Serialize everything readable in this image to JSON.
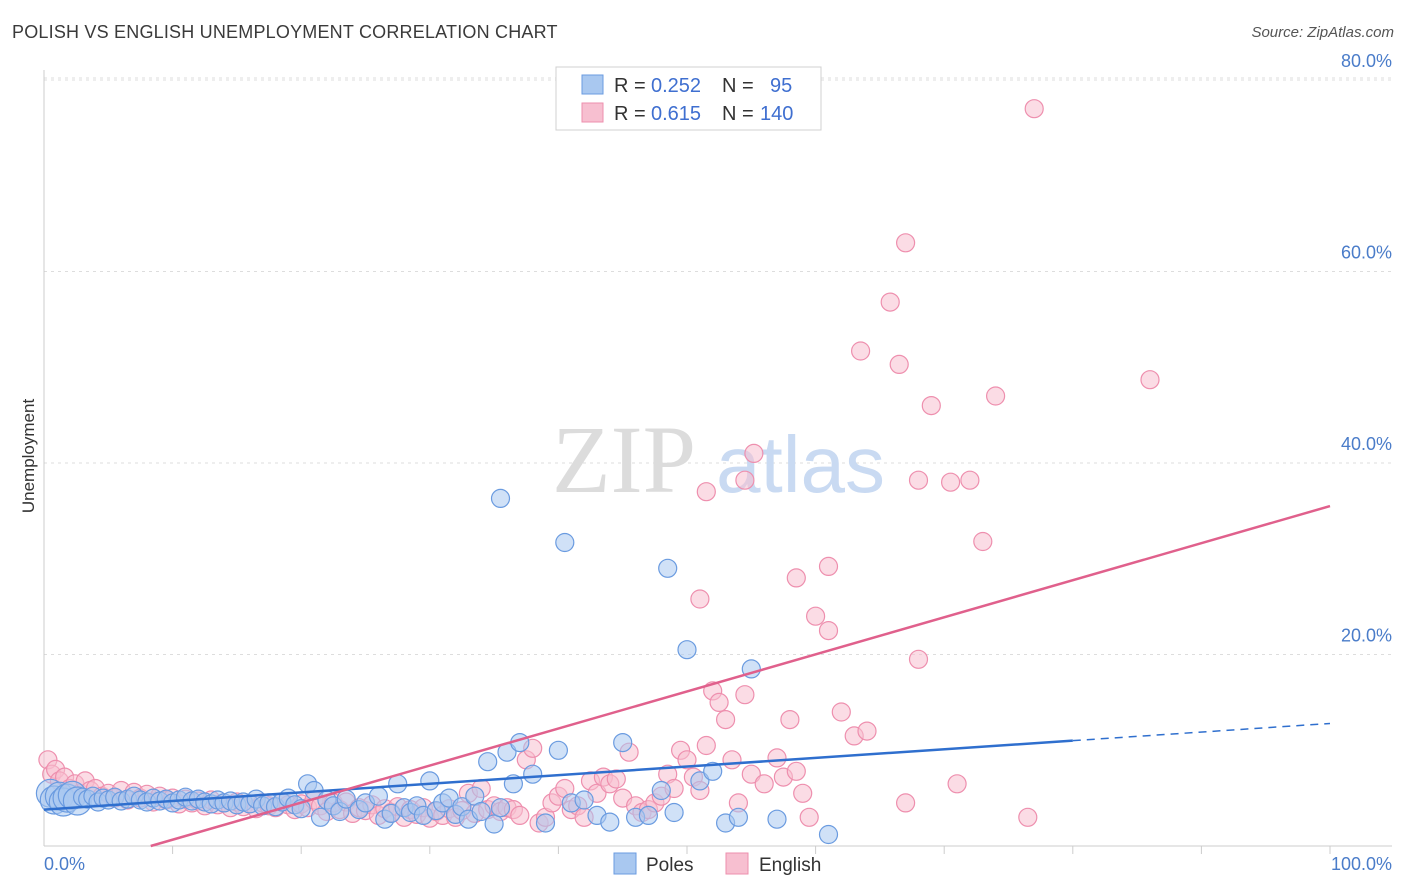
{
  "title": "POLISH VS ENGLISH UNEMPLOYMENT CORRELATION CHART",
  "source": "Source: ZipAtlas.com",
  "watermark": {
    "zip": "ZIP",
    "atlas": "atlas"
  },
  "legend": {
    "rows": [
      {
        "r_label": "R =",
        "r_value": "0.252",
        "n_label": "N =",
        "n_value": "95"
      },
      {
        "r_label": "R =",
        "r_value": "0.615",
        "n_label": "N =",
        "n_value": "140"
      }
    ]
  },
  "colors": {
    "poles_fill": "#a9c8f0",
    "poles_stroke": "#6a9be0",
    "poles_line": "#2f6fce",
    "english_fill": "#f7bfd0",
    "english_stroke": "#ee8fae",
    "english_line": "#e0608c",
    "grid": "#dddddd",
    "tick_label": "#4a7cc9"
  },
  "chart_data": {
    "type": "scatter",
    "xlabel": "",
    "ylabel": "Unemployment",
    "xlim": [
      0,
      100
    ],
    "ylim": [
      0,
      80
    ],
    "x_tick_labels": [
      "0.0%",
      "100.0%"
    ],
    "y_ticks": [
      20,
      40,
      60,
      80
    ],
    "y_tick_labels": [
      "20.0%",
      "40.0%",
      "60.0%",
      "80.0%"
    ],
    "grid": true,
    "legend_position": "bottom-center",
    "series": [
      {
        "name": "Poles",
        "trend": {
          "x": [
            0,
            80
          ],
          "y": [
            3.8,
            11.0
          ],
          "dashed_to": [
            100,
            12.8
          ]
        },
        "points": [
          [
            0.5,
            5.5
          ],
          [
            0.8,
            4.8
          ],
          [
            1.2,
            5.2
          ],
          [
            1.5,
            4.6
          ],
          [
            1.8,
            5.0
          ],
          [
            2.2,
            5.3
          ],
          [
            2.6,
            4.7
          ],
          [
            3.0,
            5.1
          ],
          [
            3.4,
            4.9
          ],
          [
            3.8,
            5.2
          ],
          [
            4.2,
            4.6
          ],
          [
            4.6,
            5.0
          ],
          [
            5.0,
            4.8
          ],
          [
            5.5,
            5.1
          ],
          [
            6.0,
            4.7
          ],
          [
            6.5,
            4.9
          ],
          [
            7.0,
            5.2
          ],
          [
            7.5,
            4.8
          ],
          [
            8.0,
            4.6
          ],
          [
            8.5,
            5.0
          ],
          [
            9.0,
            4.7
          ],
          [
            9.5,
            4.9
          ],
          [
            10.0,
            4.5
          ],
          [
            10.5,
            4.8
          ],
          [
            11.0,
            5.1
          ],
          [
            11.5,
            4.7
          ],
          [
            12.0,
            4.9
          ],
          [
            12.5,
            4.6
          ],
          [
            13.0,
            4.4
          ],
          [
            13.5,
            4.8
          ],
          [
            14.0,
            4.5
          ],
          [
            14.5,
            4.7
          ],
          [
            15.0,
            4.3
          ],
          [
            15.5,
            4.6
          ],
          [
            16.0,
            4.4
          ],
          [
            16.5,
            4.9
          ],
          [
            17.0,
            4.2
          ],
          [
            17.5,
            4.5
          ],
          [
            18.0,
            4.1
          ],
          [
            18.5,
            4.6
          ],
          [
            19.0,
            5.0
          ],
          [
            19.5,
            4.3
          ],
          [
            20.0,
            3.9
          ],
          [
            20.5,
            6.5
          ],
          [
            21.0,
            5.8
          ],
          [
            21.5,
            3.0
          ],
          [
            22.0,
            4.8
          ],
          [
            22.5,
            4.2
          ],
          [
            23.0,
            3.6
          ],
          [
            23.5,
            4.9
          ],
          [
            24.5,
            3.8
          ],
          [
            25.0,
            4.5
          ],
          [
            26.0,
            5.2
          ],
          [
            26.5,
            2.8
          ],
          [
            27.0,
            3.4
          ],
          [
            27.5,
            6.5
          ],
          [
            28.0,
            4.0
          ],
          [
            28.5,
            3.5
          ],
          [
            29.0,
            4.2
          ],
          [
            29.5,
            3.2
          ],
          [
            30.0,
            6.8
          ],
          [
            30.5,
            3.7
          ],
          [
            31.0,
            4.5
          ],
          [
            31.5,
            5.0
          ],
          [
            32.0,
            3.3
          ],
          [
            32.5,
            4.1
          ],
          [
            33.0,
            2.8
          ],
          [
            33.5,
            5.2
          ],
          [
            34.0,
            3.6
          ],
          [
            34.5,
            8.8
          ],
          [
            35.0,
            2.3
          ],
          [
            35.5,
            4.0
          ],
          [
            36.0,
            9.8
          ],
          [
            36.5,
            6.5
          ],
          [
            37.0,
            10.8
          ],
          [
            38.0,
            7.5
          ],
          [
            39.0,
            2.4
          ],
          [
            40.0,
            10.0
          ],
          [
            41.0,
            4.5
          ],
          [
            42.0,
            4.8
          ],
          [
            43.0,
            3.2
          ],
          [
            44.0,
            2.5
          ],
          [
            45.0,
            10.8
          ],
          [
            46.0,
            3.0
          ],
          [
            47.0,
            3.2
          ],
          [
            48.0,
            5.8
          ],
          [
            49.0,
            3.5
          ],
          [
            50.0,
            20.5
          ],
          [
            51.0,
            6.8
          ],
          [
            52.0,
            7.8
          ],
          [
            53.0,
            2.4
          ],
          [
            54.0,
            3.0
          ],
          [
            55.0,
            18.5
          ],
          [
            57.0,
            2.8
          ],
          [
            61.0,
            1.2
          ],
          [
            35.5,
            36.3
          ],
          [
            40.5,
            31.7
          ],
          [
            48.5,
            29.0
          ]
        ]
      },
      {
        "name": "English",
        "trend": {
          "x": [
            8.3,
            100
          ],
          "y": [
            0,
            35.5
          ]
        },
        "points": [
          [
            0.3,
            9.0
          ],
          [
            0.6,
            7.5
          ],
          [
            0.9,
            8.0
          ],
          [
            1.2,
            6.8
          ],
          [
            1.6,
            7.2
          ],
          [
            2.0,
            6.0
          ],
          [
            2.4,
            6.5
          ],
          [
            2.8,
            5.5
          ],
          [
            3.2,
            6.8
          ],
          [
            3.6,
            5.8
          ],
          [
            4.0,
            6.0
          ],
          [
            4.5,
            5.2
          ],
          [
            5.0,
            5.5
          ],
          [
            5.5,
            5.0
          ],
          [
            6.0,
            5.8
          ],
          [
            6.5,
            4.8
          ],
          [
            7.0,
            5.6
          ],
          [
            7.5,
            5.0
          ],
          [
            8.0,
            5.4
          ],
          [
            8.5,
            4.6
          ],
          [
            9.0,
            5.2
          ],
          [
            9.5,
            4.8
          ],
          [
            10.0,
            5.0
          ],
          [
            10.5,
            4.4
          ],
          [
            11.0,
            4.9
          ],
          [
            11.5,
            4.5
          ],
          [
            12.0,
            4.7
          ],
          [
            12.5,
            4.2
          ],
          [
            13.0,
            4.8
          ],
          [
            13.5,
            4.3
          ],
          [
            14.0,
            4.5
          ],
          [
            14.5,
            4.0
          ],
          [
            15.0,
            4.6
          ],
          [
            15.5,
            4.1
          ],
          [
            16.0,
            4.4
          ],
          [
            16.5,
            3.9
          ],
          [
            17.0,
            4.5
          ],
          [
            17.5,
            4.2
          ],
          [
            18.0,
            4.0
          ],
          [
            18.5,
            4.6
          ],
          [
            19.0,
            4.3
          ],
          [
            19.5,
            3.8
          ],
          [
            20.0,
            4.4
          ],
          [
            20.5,
            4.0
          ],
          [
            21.0,
            4.8
          ],
          [
            21.5,
            4.2
          ],
          [
            22.0,
            3.6
          ],
          [
            22.5,
            4.5
          ],
          [
            23.0,
            3.8
          ],
          [
            23.5,
            4.6
          ],
          [
            24.0,
            3.4
          ],
          [
            24.5,
            4.0
          ],
          [
            25.0,
            3.7
          ],
          [
            25.5,
            4.3
          ],
          [
            26.0,
            3.2
          ],
          [
            26.5,
            3.9
          ],
          [
            27.0,
            3.5
          ],
          [
            27.5,
            4.1
          ],
          [
            28.0,
            3.0
          ],
          [
            28.5,
            3.8
          ],
          [
            29.0,
            3.3
          ],
          [
            29.5,
            4.0
          ],
          [
            30.0,
            2.9
          ],
          [
            30.5,
            3.6
          ],
          [
            31.0,
            3.2
          ],
          [
            31.5,
            3.9
          ],
          [
            32.0,
            3.0
          ],
          [
            32.5,
            3.7
          ],
          [
            33.0,
            5.5
          ],
          [
            33.5,
            3.4
          ],
          [
            34.0,
            6.0
          ],
          [
            34.5,
            3.8
          ],
          [
            35.0,
            4.2
          ],
          [
            35.5,
            3.6
          ],
          [
            36.0,
            4.0
          ],
          [
            36.5,
            3.8
          ],
          [
            37.0,
            3.2
          ],
          [
            37.5,
            9.0
          ],
          [
            38.0,
            10.2
          ],
          [
            38.5,
            2.4
          ],
          [
            39.0,
            3.0
          ],
          [
            39.5,
            4.5
          ],
          [
            40.0,
            5.2
          ],
          [
            40.5,
            6.0
          ],
          [
            41.0,
            3.8
          ],
          [
            41.5,
            4.2
          ],
          [
            42.0,
            3.0
          ],
          [
            42.5,
            6.8
          ],
          [
            43.0,
            5.5
          ],
          [
            43.5,
            7.2
          ],
          [
            44.0,
            6.5
          ],
          [
            44.5,
            7.0
          ],
          [
            45.0,
            5.0
          ],
          [
            45.5,
            9.8
          ],
          [
            46.0,
            4.2
          ],
          [
            46.5,
            3.5
          ],
          [
            47.0,
            3.8
          ],
          [
            47.5,
            4.5
          ],
          [
            48.0,
            5.2
          ],
          [
            48.5,
            7.5
          ],
          [
            49.0,
            6.0
          ],
          [
            49.5,
            10.0
          ],
          [
            50.0,
            9.0
          ],
          [
            50.5,
            7.2
          ],
          [
            51.0,
            5.8
          ],
          [
            51.5,
            10.5
          ],
          [
            52.0,
            16.2
          ],
          [
            52.5,
            15.0
          ],
          [
            53.0,
            13.2
          ],
          [
            53.5,
            9.0
          ],
          [
            54.0,
            4.5
          ],
          [
            54.5,
            15.8
          ],
          [
            55.0,
            7.5
          ],
          [
            56.0,
            6.5
          ],
          [
            57.0,
            9.2
          ],
          [
            57.5,
            7.2
          ],
          [
            58.0,
            13.2
          ],
          [
            58.5,
            7.8
          ],
          [
            59.0,
            5.5
          ],
          [
            59.5,
            3.0
          ],
          [
            60.0,
            24.0
          ],
          [
            61.0,
            22.5
          ],
          [
            62.0,
            14.0
          ],
          [
            63.0,
            11.5
          ],
          [
            64.0,
            12.0
          ],
          [
            67.0,
            4.5
          ],
          [
            68.0,
            19.5
          ],
          [
            71.0,
            6.5
          ],
          [
            76.5,
            3.0
          ],
          [
            51.5,
            37.0
          ],
          [
            54.5,
            38.2
          ],
          [
            55.2,
            41.0
          ],
          [
            51.0,
            25.8
          ],
          [
            58.5,
            28.0
          ],
          [
            61.0,
            29.2
          ],
          [
            63.5,
            51.7
          ],
          [
            65.8,
            56.8
          ],
          [
            66.5,
            50.3
          ],
          [
            69.0,
            46.0
          ],
          [
            70.5,
            38.0
          ],
          [
            73.0,
            31.8
          ],
          [
            74.0,
            47.0
          ],
          [
            68.0,
            38.2
          ],
          [
            67.0,
            63.0
          ],
          [
            77.0,
            77.0
          ],
          [
            86.0,
            48.7
          ],
          [
            72.0,
            38.2
          ]
        ]
      }
    ]
  }
}
